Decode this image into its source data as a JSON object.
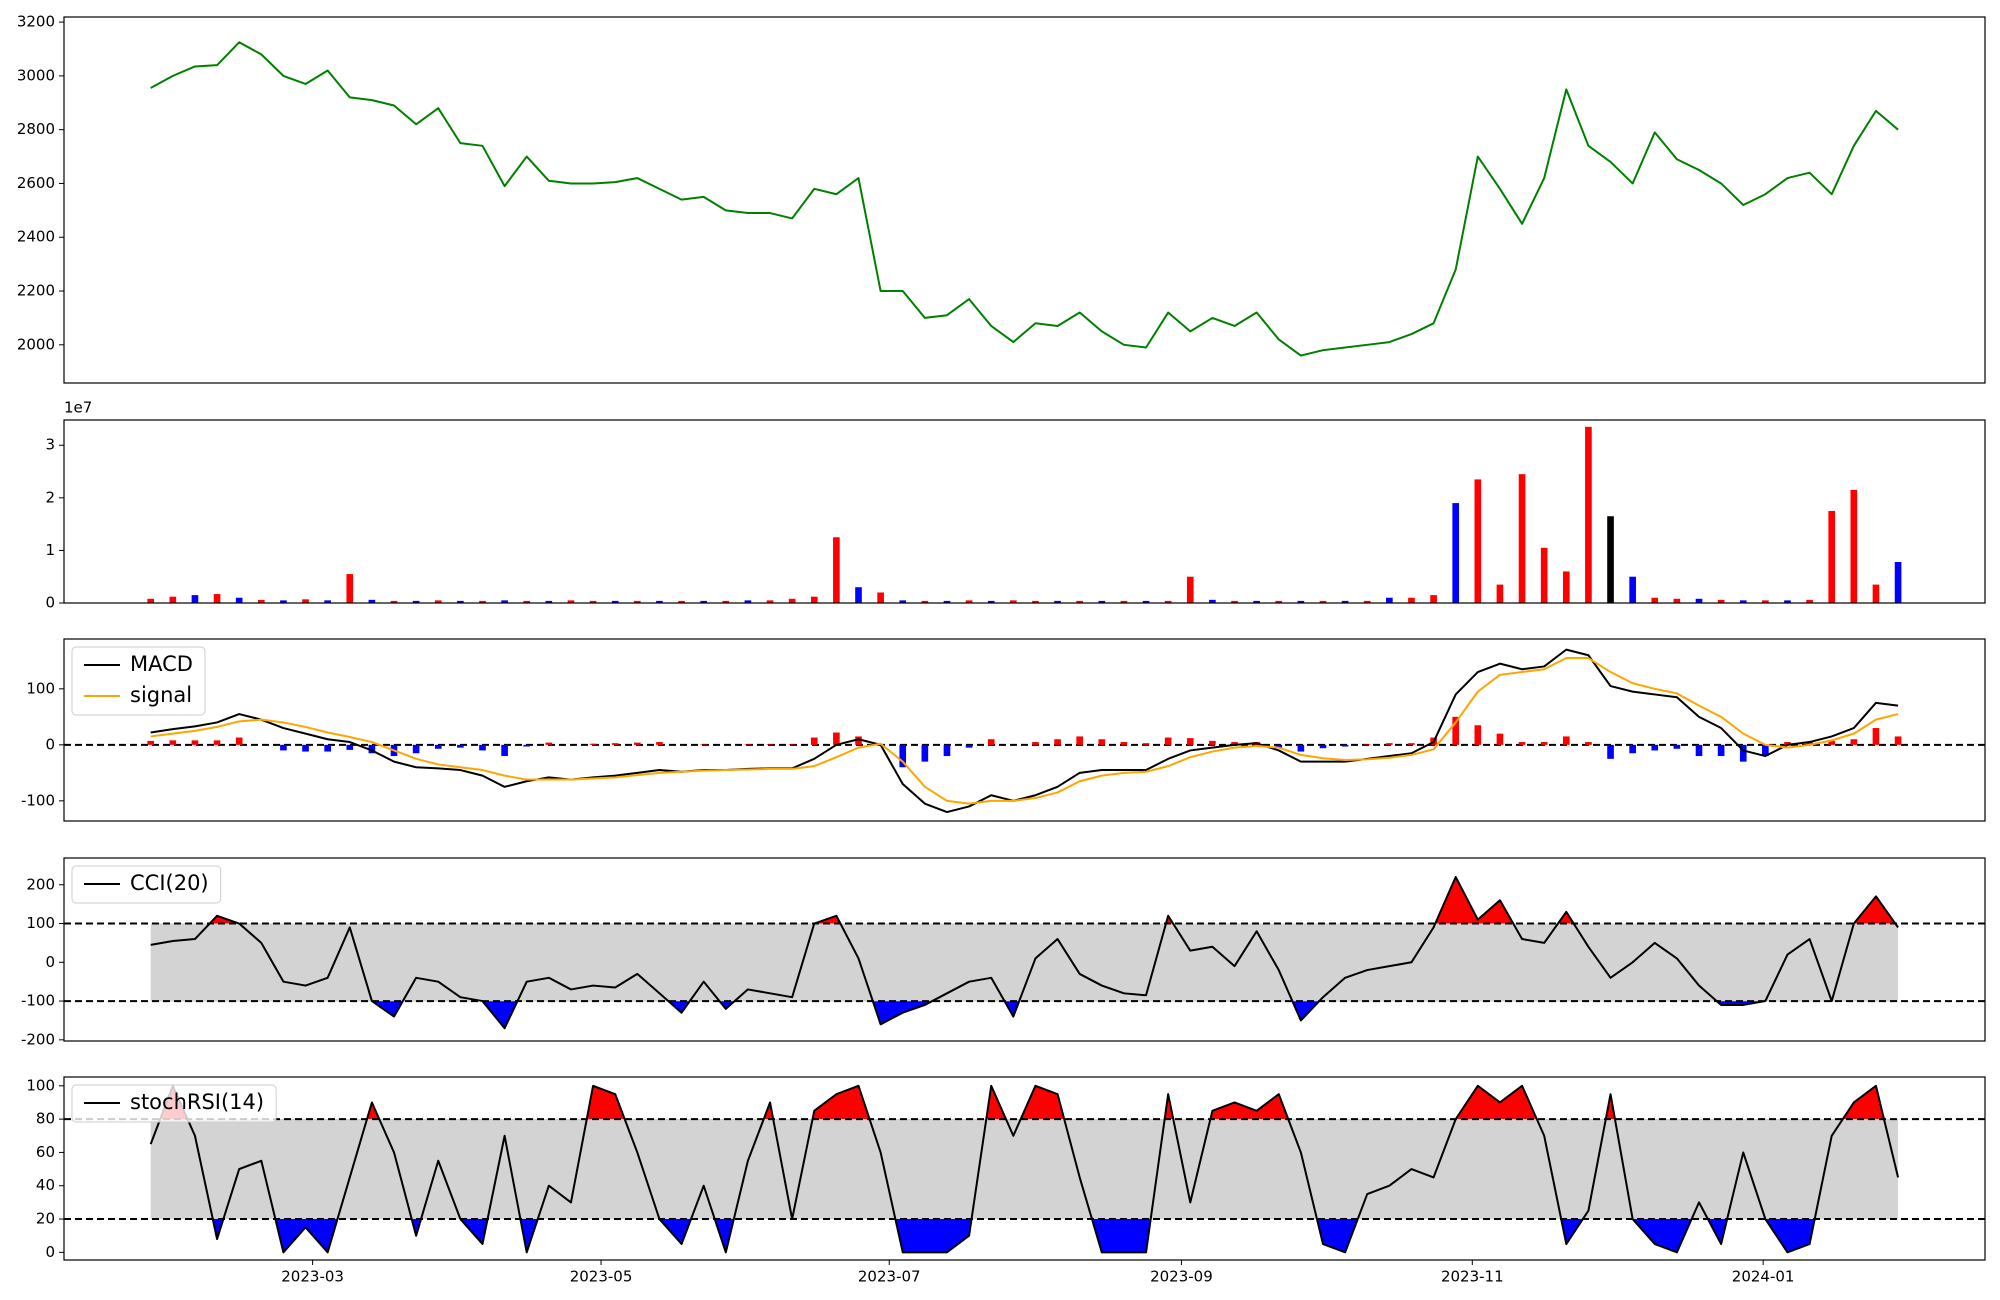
{
  "chart_data": [
    {
      "type": "line",
      "series": [
        {
          "color": "green",
          "values": [
            2955,
            3000,
            3035,
            3040,
            3125,
            3080,
            3000,
            2970,
            3020,
            2920,
            2910,
            2890,
            2820,
            2880,
            2750,
            2740,
            2590,
            2700,
            2610,
            2600,
            2600,
            2605,
            2620,
            2580,
            2540,
            2550,
            2500,
            2490,
            2490,
            2470,
            2580,
            2560,
            2620,
            2200,
            2200,
            2100,
            2110,
            2170,
            2070,
            2010,
            2080,
            2070,
            2120,
            2050,
            2000,
            1990,
            2120,
            2050,
            2100,
            2070,
            2120,
            2020,
            1960,
            1980,
            1990,
            2000,
            2010,
            2040,
            2080,
            2280,
            2700,
            2580,
            2450,
            2620,
            2950,
            2740,
            2680,
            2600,
            2790,
            2690,
            2650,
            2600,
            2520,
            2560,
            2620,
            2640,
            2560,
            2740,
            2870,
            2800
          ]
        }
      ],
      "xlim": [
        -3.92,
        82.93
      ],
      "ylim": [
        1858,
        3219
      ],
      "yticks": [
        2000,
        2200,
        2400,
        2600,
        2800,
        3000,
        3200
      ]
    },
    {
      "type": "bar",
      "offset_text": "1e7",
      "values": [
        0.08,
        0.12,
        0.15,
        0.17,
        0.1,
        0.06,
        0.05,
        0.07,
        0.05,
        0.55,
        0.06,
        0.04,
        0.04,
        0.05,
        0.04,
        0.04,
        0.05,
        0.04,
        0.04,
        0.05,
        0.04,
        0.04,
        0.04,
        0.04,
        0.04,
        0.04,
        0.04,
        0.05,
        0.05,
        0.08,
        0.12,
        1.25,
        0.3,
        0.2,
        0.05,
        0.04,
        0.04,
        0.05,
        0.04,
        0.05,
        0.04,
        0.04,
        0.04,
        0.04,
        0.04,
        0.04,
        0.04,
        0.5,
        0.06,
        0.04,
        0.04,
        0.04,
        0.04,
        0.04,
        0.04,
        0.04,
        0.1,
        0.1,
        0.15,
        1.9,
        2.35,
        0.35,
        2.45,
        1.05,
        0.6,
        3.35,
        1.65,
        0.5,
        0.1,
        0.08,
        0.08,
        0.06,
        0.05,
        0.05,
        0.05,
        0.06,
        1.75,
        2.15,
        0.35,
        0.78
      ],
      "colors": [
        "red",
        "red",
        "blue",
        "red",
        "blue",
        "red",
        "blue",
        "red",
        "blue",
        "red",
        "blue",
        "red",
        "blue",
        "red",
        "blue",
        "red",
        "blue",
        "red",
        "blue",
        "red",
        "red",
        "blue",
        "red",
        "blue",
        "red",
        "blue",
        "red",
        "blue",
        "red",
        "red",
        "red",
        "red",
        "blue",
        "red",
        "blue",
        "red",
        "blue",
        "red",
        "blue",
        "red",
        "red",
        "blue",
        "red",
        "blue",
        "red",
        "blue",
        "red",
        "red",
        "blue",
        "red",
        "blue",
        "red",
        "blue",
        "red",
        "blue",
        "red",
        "blue",
        "red",
        "red",
        "blue",
        "red",
        "red",
        "red",
        "red",
        "red",
        "red",
        "black",
        "blue",
        "red",
        "red",
        "blue",
        "red",
        "blue",
        "red",
        "blue",
        "red",
        "red",
        "red",
        "red",
        "blue"
      ],
      "xlim": [
        -3.92,
        82.93
      ],
      "ylim": [
        0,
        3.48
      ],
      "yticks": [
        0,
        1,
        2,
        3
      ]
    },
    {
      "type": "line",
      "legend": "upper left",
      "hline": 0,
      "series": [
        {
          "name": "MACD",
          "color": "black",
          "values": [
            22,
            28,
            33,
            40,
            55,
            45,
            30,
            20,
            10,
            5,
            -10,
            -30,
            -40,
            -42,
            -45,
            -55,
            -75,
            -65,
            -58,
            -62,
            -58,
            -55,
            -50,
            -45,
            -48,
            -45,
            -45,
            -43,
            -42,
            -42,
            -25,
            0,
            10,
            0,
            -70,
            -105,
            -120,
            -110,
            -90,
            -100,
            -90,
            -75,
            -50,
            -45,
            -45,
            -45,
            -25,
            -10,
            -5,
            0,
            3,
            -10,
            -30,
            -30,
            -30,
            -25,
            -20,
            -15,
            5,
            90,
            130,
            145,
            135,
            140,
            170,
            160,
            105,
            95,
            90,
            85,
            50,
            30,
            -10,
            -20,
            0,
            5,
            15,
            30,
            75,
            70
          ]
        },
        {
          "name": "signal",
          "color": "orange",
          "values": [
            15,
            20,
            25,
            32,
            42,
            45,
            40,
            32,
            22,
            14,
            5,
            -10,
            -25,
            -35,
            -40,
            -45,
            -55,
            -62,
            -62,
            -62,
            -60,
            -58,
            -54,
            -50,
            -48,
            -46,
            -45,
            -44,
            -43,
            -43,
            -38,
            -22,
            -5,
            2,
            -30,
            -75,
            -100,
            -105,
            -100,
            -100,
            -95,
            -85,
            -65,
            -55,
            -50,
            -48,
            -38,
            -22,
            -12,
            -5,
            -2,
            -5,
            -18,
            -24,
            -27,
            -26,
            -23,
            -18,
            -8,
            40,
            95,
            125,
            130,
            135,
            155,
            155,
            130,
            110,
            100,
            92,
            70,
            50,
            20,
            0,
            -5,
            0,
            8,
            20,
            45,
            55
          ]
        }
      ],
      "histogram": {
        "positive_color": "red",
        "negative_color": "blue",
        "values": [
          7,
          8,
          8,
          8,
          13,
          0,
          -10,
          -12,
          -12,
          -9,
          -15,
          -20,
          -15,
          -7,
          -5,
          -10,
          -20,
          -3,
          4,
          0,
          2,
          3,
          4,
          5,
          0,
          1,
          0,
          1,
          1,
          1,
          13,
          22,
          15,
          -2,
          -40,
          -30,
          -20,
          -5,
          10,
          0,
          5,
          10,
          15,
          10,
          5,
          3,
          13,
          12,
          7,
          5,
          5,
          -5,
          -12,
          -6,
          -3,
          1,
          3,
          3,
          13,
          50,
          35,
          20,
          5,
          5,
          15,
          5,
          -25,
          -15,
          -10,
          -7,
          -20,
          -20,
          -30,
          -20,
          5,
          5,
          7,
          10,
          30,
          15
        ]
      },
      "xlim": [
        -3.92,
        82.93
      ],
      "ylim": [
        -136,
        189
      ],
      "yticks": [
        -100,
        0,
        100
      ]
    },
    {
      "type": "line",
      "legend": "upper left",
      "thresholds": [
        -100,
        100
      ],
      "band_color": "lightgray",
      "above_color": "red",
      "below_color": "blue",
      "series": [
        {
          "name": "CCI(20)",
          "color": "black",
          "values": [
            45,
            55,
            60,
            120,
            100,
            50,
            -50,
            -60,
            -40,
            90,
            -100,
            -140,
            -40,
            -50,
            -90,
            -100,
            -170,
            -50,
            -40,
            -70,
            -60,
            -65,
            -30,
            -80,
            -130,
            -50,
            -120,
            -70,
            -80,
            -90,
            100,
            120,
            10,
            -160,
            -130,
            -110,
            -80,
            -50,
            -40,
            -140,
            10,
            60,
            -30,
            -60,
            -80,
            -85,
            120,
            30,
            40,
            -10,
            80,
            -20,
            -150,
            -90,
            -40,
            -20,
            -10,
            0,
            90,
            220,
            110,
            160,
            60,
            50,
            130,
            40,
            -40,
            0,
            50,
            10,
            -60,
            -110,
            -110,
            -100,
            20,
            60,
            -100,
            100,
            170,
            90
          ]
        }
      ],
      "xlim": [
        -3.92,
        82.93
      ],
      "ylim": [
        -203,
        269
      ],
      "yticks": [
        -200,
        -100,
        0,
        100,
        200
      ]
    },
    {
      "type": "line",
      "legend": "upper left",
      "thresholds": [
        20,
        80
      ],
      "band_color": "lightgray",
      "above_color": "red",
      "below_color": "blue",
      "series": [
        {
          "name": "stochRSI(14)",
          "color": "black",
          "values": [
            65,
            100,
            70,
            8,
            50,
            55,
            0,
            15,
            0,
            45,
            90,
            60,
            10,
            55,
            20,
            5,
            70,
            0,
            40,
            30,
            100,
            95,
            60,
            20,
            5,
            40,
            0,
            55,
            90,
            20,
            85,
            95,
            100,
            60,
            0,
            0,
            0,
            10,
            100,
            70,
            100,
            95,
            45,
            0,
            0,
            0,
            95,
            30,
            85,
            90,
            85,
            95,
            60,
            5,
            0,
            35,
            40,
            50,
            45,
            80,
            100,
            90,
            100,
            70,
            5,
            25,
            95,
            20,
            5,
            0,
            30,
            5,
            60,
            20,
            0,
            5,
            70,
            90,
            100,
            45
          ]
        }
      ],
      "xlim": [
        -3.92,
        82.93
      ],
      "ylim": [
        -4.6,
        105.3
      ],
      "yticks": [
        0,
        20,
        40,
        60,
        80,
        100
      ],
      "xticks": [
        {
          "value": 7.32,
          "label": "2023-03"
        },
        {
          "value": 20.36,
          "label": "2023-05"
        },
        {
          "value": 33.39,
          "label": "2023-07"
        },
        {
          "value": 46.6,
          "label": "2023-09"
        },
        {
          "value": 59.75,
          "label": "2023-11"
        },
        {
          "value": 72.9,
          "label": "2024-01"
        }
      ]
    }
  ]
}
